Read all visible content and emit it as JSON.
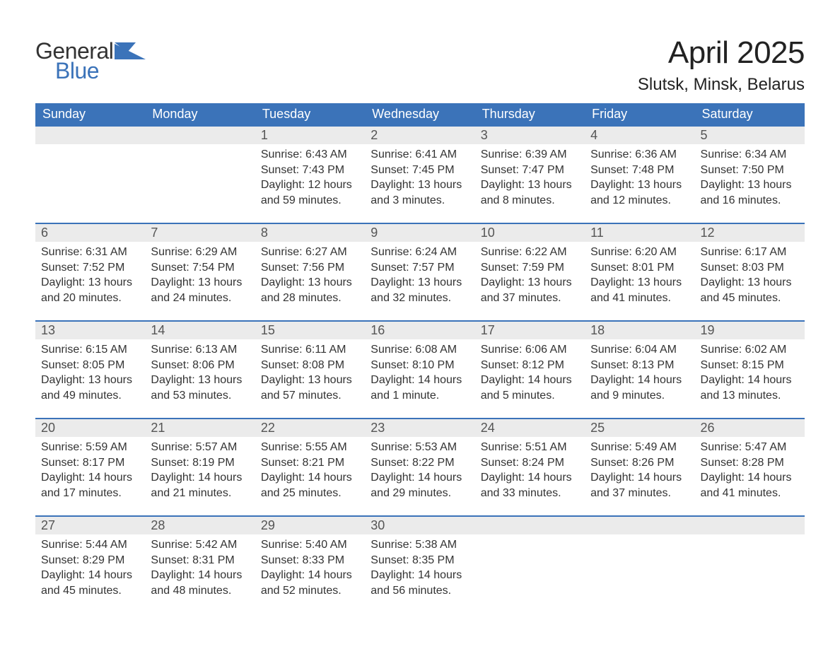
{
  "logo": {
    "word1": "General",
    "word2": "Blue",
    "word1_color": "#333333",
    "word2_color": "#3b73b9",
    "icon_color": "#3b73b9"
  },
  "title": "April 2025",
  "location": "Slutsk, Minsk, Belarus",
  "header_bg": "#3b73b9",
  "header_text_color": "#ffffff",
  "daynum_bg": "#ebebeb",
  "row_border_color": "#3b73b9",
  "body_text_color": "#333333",
  "weekdays": [
    "Sunday",
    "Monday",
    "Tuesday",
    "Wednesday",
    "Thursday",
    "Friday",
    "Saturday"
  ],
  "weeks": [
    [
      null,
      null,
      {
        "n": "1",
        "sr": "6:43 AM",
        "ss": "7:43 PM",
        "dl": "12 hours and 59 minutes."
      },
      {
        "n": "2",
        "sr": "6:41 AM",
        "ss": "7:45 PM",
        "dl": "13 hours and 3 minutes."
      },
      {
        "n": "3",
        "sr": "6:39 AM",
        "ss": "7:47 PM",
        "dl": "13 hours and 8 minutes."
      },
      {
        "n": "4",
        "sr": "6:36 AM",
        "ss": "7:48 PM",
        "dl": "13 hours and 12 minutes."
      },
      {
        "n": "5",
        "sr": "6:34 AM",
        "ss": "7:50 PM",
        "dl": "13 hours and 16 minutes."
      }
    ],
    [
      {
        "n": "6",
        "sr": "6:31 AM",
        "ss": "7:52 PM",
        "dl": "13 hours and 20 minutes."
      },
      {
        "n": "7",
        "sr": "6:29 AM",
        "ss": "7:54 PM",
        "dl": "13 hours and 24 minutes."
      },
      {
        "n": "8",
        "sr": "6:27 AM",
        "ss": "7:56 PM",
        "dl": "13 hours and 28 minutes."
      },
      {
        "n": "9",
        "sr": "6:24 AM",
        "ss": "7:57 PM",
        "dl": "13 hours and 32 minutes."
      },
      {
        "n": "10",
        "sr": "6:22 AM",
        "ss": "7:59 PM",
        "dl": "13 hours and 37 minutes."
      },
      {
        "n": "11",
        "sr": "6:20 AM",
        "ss": "8:01 PM",
        "dl": "13 hours and 41 minutes."
      },
      {
        "n": "12",
        "sr": "6:17 AM",
        "ss": "8:03 PM",
        "dl": "13 hours and 45 minutes."
      }
    ],
    [
      {
        "n": "13",
        "sr": "6:15 AM",
        "ss": "8:05 PM",
        "dl": "13 hours and 49 minutes."
      },
      {
        "n": "14",
        "sr": "6:13 AM",
        "ss": "8:06 PM",
        "dl": "13 hours and 53 minutes."
      },
      {
        "n": "15",
        "sr": "6:11 AM",
        "ss": "8:08 PM",
        "dl": "13 hours and 57 minutes."
      },
      {
        "n": "16",
        "sr": "6:08 AM",
        "ss": "8:10 PM",
        "dl": "14 hours and 1 minute."
      },
      {
        "n": "17",
        "sr": "6:06 AM",
        "ss": "8:12 PM",
        "dl": "14 hours and 5 minutes."
      },
      {
        "n": "18",
        "sr": "6:04 AM",
        "ss": "8:13 PM",
        "dl": "14 hours and 9 minutes."
      },
      {
        "n": "19",
        "sr": "6:02 AM",
        "ss": "8:15 PM",
        "dl": "14 hours and 13 minutes."
      }
    ],
    [
      {
        "n": "20",
        "sr": "5:59 AM",
        "ss": "8:17 PM",
        "dl": "14 hours and 17 minutes."
      },
      {
        "n": "21",
        "sr": "5:57 AM",
        "ss": "8:19 PM",
        "dl": "14 hours and 21 minutes."
      },
      {
        "n": "22",
        "sr": "5:55 AM",
        "ss": "8:21 PM",
        "dl": "14 hours and 25 minutes."
      },
      {
        "n": "23",
        "sr": "5:53 AM",
        "ss": "8:22 PM",
        "dl": "14 hours and 29 minutes."
      },
      {
        "n": "24",
        "sr": "5:51 AM",
        "ss": "8:24 PM",
        "dl": "14 hours and 33 minutes."
      },
      {
        "n": "25",
        "sr": "5:49 AM",
        "ss": "8:26 PM",
        "dl": "14 hours and 37 minutes."
      },
      {
        "n": "26",
        "sr": "5:47 AM",
        "ss": "8:28 PM",
        "dl": "14 hours and 41 minutes."
      }
    ],
    [
      {
        "n": "27",
        "sr": "5:44 AM",
        "ss": "8:29 PM",
        "dl": "14 hours and 45 minutes."
      },
      {
        "n": "28",
        "sr": "5:42 AM",
        "ss": "8:31 PM",
        "dl": "14 hours and 48 minutes."
      },
      {
        "n": "29",
        "sr": "5:40 AM",
        "ss": "8:33 PM",
        "dl": "14 hours and 52 minutes."
      },
      {
        "n": "30",
        "sr": "5:38 AM",
        "ss": "8:35 PM",
        "dl": "14 hours and 56 minutes."
      },
      null,
      null,
      null
    ]
  ],
  "labels": {
    "sunrise": "Sunrise: ",
    "sunset": "Sunset: ",
    "daylight": "Daylight: "
  }
}
